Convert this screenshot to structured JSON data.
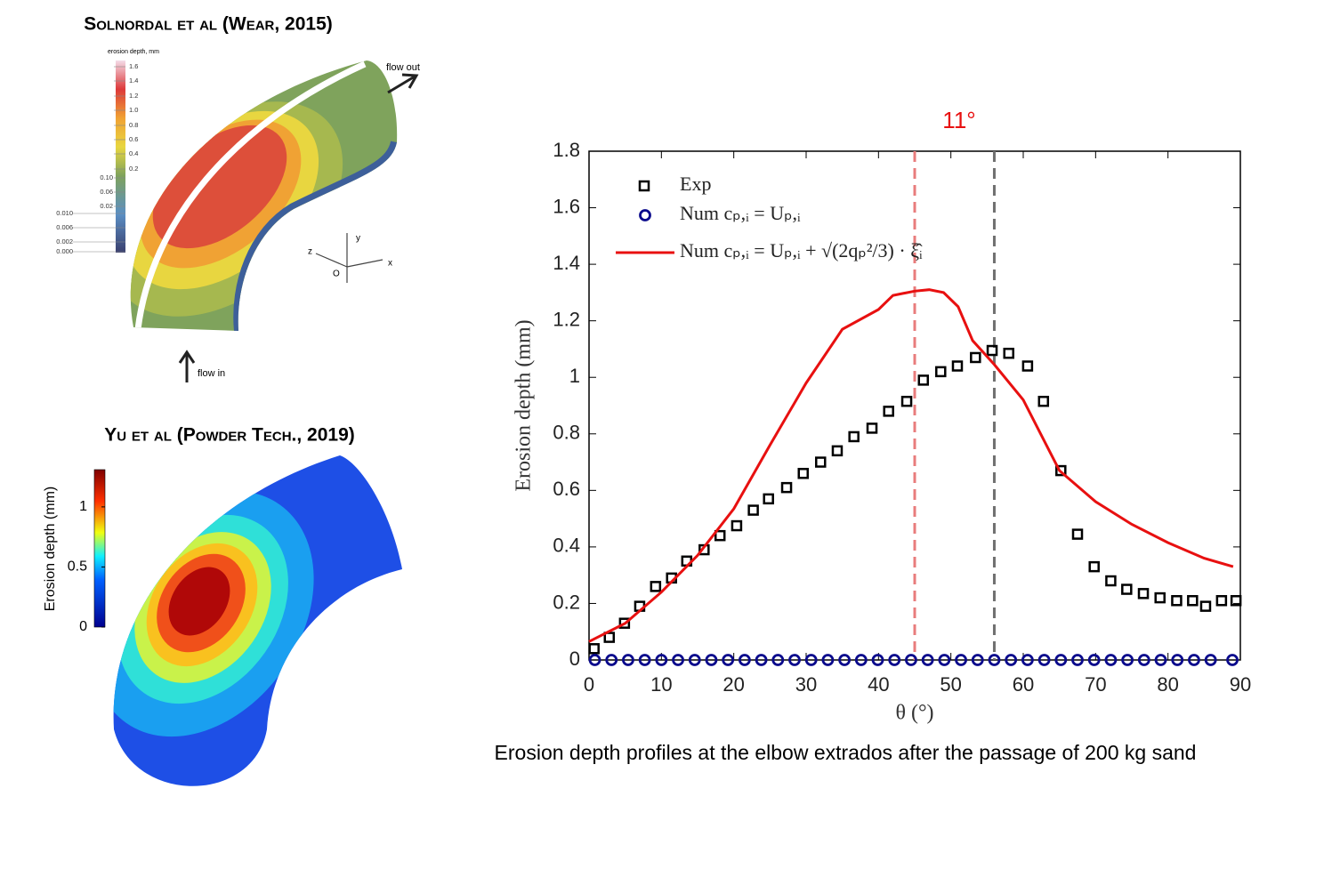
{
  "panels": [
    {
      "title": "Solnordal et al (Wear, 2015)",
      "colorbar_label": "erosion depth, mm",
      "colorbar_labels": [
        "1.6",
        "1.4",
        "1.2",
        "1.0",
        "0.8",
        "0.6",
        "0.4",
        "0.2",
        "0.10",
        "0.06",
        "0.02",
        "0.010",
        "0.006",
        "0.002",
        "0.000"
      ],
      "flow_out": "flow out",
      "flow_in": "flow in",
      "axis_labels": [
        "y",
        "z",
        "x",
        "O"
      ]
    },
    {
      "title": "Yu et al (Powder Tech., 2019)",
      "colorbar_label": "Erosion depth (mm)",
      "colorbar_lim": [
        0,
        1.31
      ],
      "colorbar_ticks": [
        0,
        0.5,
        1
      ]
    }
  ],
  "chart_data": {
    "type": "mixed",
    "annotation": "11°",
    "reference_lines": [
      {
        "x": 45,
        "color": "#e87c7c"
      },
      {
        "x": 56,
        "color": "#707070"
      }
    ],
    "xlabel": "θ (°)",
    "ylabel": "Erosion depth (mm)",
    "caption": "Erosion depth profiles at the elbow extrados after the passage of 200 kg sand",
    "xlim": [
      0,
      90
    ],
    "ylim": [
      0,
      1.8
    ],
    "xticks": [
      0,
      10,
      20,
      30,
      40,
      50,
      60,
      70,
      80,
      90
    ],
    "yticks": [
      0,
      0.2,
      0.4,
      0.6,
      0.8,
      1,
      1.2,
      1.4,
      1.6,
      1.8
    ],
    "legend": "upper left",
    "series": [
      {
        "name": "Exp",
        "color": "#000000",
        "marker": "square",
        "x": [
          0.7,
          2.8,
          4.9,
          7.0,
          9.2,
          11.4,
          13.5,
          15.9,
          18.1,
          20.4,
          22.7,
          24.8,
          27.3,
          29.6,
          32.0,
          34.3,
          36.6,
          39.1,
          41.4,
          43.9,
          46.2,
          48.6,
          50.9,
          53.4,
          55.7,
          58.0,
          60.6,
          62.8,
          65.2,
          67.5,
          69.8,
          72.1,
          74.3,
          76.6,
          78.9,
          81.2,
          83.4,
          85.2,
          87.4,
          89.4
        ],
        "values": [
          0.04,
          0.08,
          0.13,
          0.19,
          0.26,
          0.29,
          0.35,
          0.39,
          0.44,
          0.475,
          0.53,
          0.57,
          0.61,
          0.66,
          0.7,
          0.74,
          0.79,
          0.82,
          0.88,
          0.915,
          0.99,
          1.02,
          1.04,
          1.07,
          1.095,
          1.085,
          1.04,
          0.915,
          0.67,
          0.445,
          0.33,
          0.28,
          0.25,
          0.235,
          0.22,
          0.21,
          0.21,
          0.19,
          0.21,
          0.21
        ]
      },
      {
        "name": "Num cₚ,ᵢ = Uₚ,ᵢ",
        "color": "#0a0a8c",
        "marker": "circle",
        "x": [
          0.8,
          3.1,
          5.4,
          7.7,
          10,
          12.3,
          14.6,
          16.9,
          19.2,
          21.5,
          23.8,
          26.1,
          28.4,
          30.7,
          33,
          35.3,
          37.6,
          39.9,
          42.2,
          44.5,
          46.8,
          49.1,
          51.4,
          53.7,
          56,
          58.3,
          60.6,
          62.9,
          65.2,
          67.5,
          69.8,
          72.1,
          74.4,
          76.7,
          79,
          81.3,
          83.6,
          85.9,
          88.9
        ],
        "values": [
          0,
          0,
          0,
          0,
          0,
          0,
          0,
          0,
          0,
          0,
          0,
          0,
          0,
          0,
          0,
          0,
          0,
          0,
          0,
          0,
          0,
          0,
          0,
          0,
          0,
          0,
          0,
          0,
          0,
          0,
          0,
          0,
          0,
          0,
          0,
          0,
          0,
          0,
          0
        ]
      },
      {
        "name": "Num cₚ,ᵢ = Uₚ,ᵢ + √(2qₚ²/3) · ξ̂ᵢ",
        "color": "#e81010",
        "marker": "line",
        "x": [
          0,
          5,
          10,
          15,
          20,
          25,
          30,
          35,
          40,
          42,
          45,
          47,
          49,
          51,
          53,
          56,
          60,
          65,
          70,
          75,
          80,
          85,
          89
        ],
        "values": [
          0.065,
          0.13,
          0.24,
          0.37,
          0.535,
          0.76,
          0.98,
          1.17,
          1.24,
          1.29,
          1.305,
          1.31,
          1.3,
          1.25,
          1.13,
          1.045,
          0.92,
          0.67,
          0.56,
          0.48,
          0.415,
          0.36,
          0.33
        ]
      }
    ]
  }
}
